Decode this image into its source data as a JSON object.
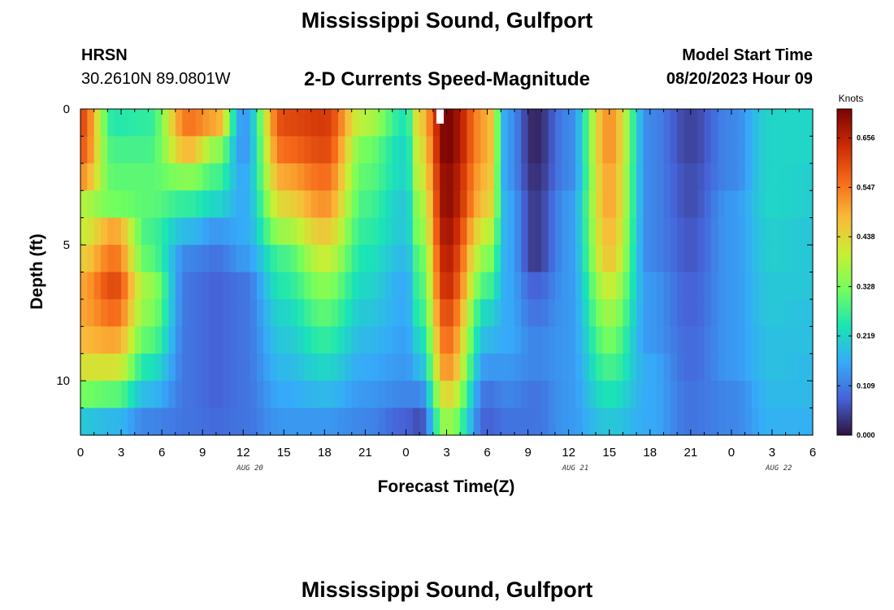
{
  "header": {
    "title": "Mississippi Sound, Gulfport",
    "station_id": "HRSN",
    "coordinates": "30.2610N  89.0801W",
    "subtitle": "2-D Currents Speed-Magnitude",
    "model_start_label": "Model Start Time",
    "model_start_value": "08/20/2023 Hour 09"
  },
  "footer": {
    "title": "Mississippi Sound, Gulfport"
  },
  "chart_data": {
    "type": "heatmap",
    "xlabel": "Forecast Time(Z)",
    "ylabel": "Depth (ft)",
    "x_tick_labels": [
      "0",
      "3",
      "6",
      "9",
      "12",
      "15",
      "18",
      "21",
      "0",
      "3",
      "6",
      "9",
      "12",
      "15",
      "18",
      "21",
      "0",
      "3",
      "6"
    ],
    "date_labels": [
      "AUG 20",
      "AUG 21",
      "AUG 22"
    ],
    "y_tick_labels": [
      "0",
      "5",
      "10"
    ],
    "xlim_hours": [
      0,
      54
    ],
    "ylim_ft": [
      0,
      12
    ],
    "colorbar": {
      "title": "Knots",
      "tick_labels": [
        "0.656",
        "0.547",
        "0.438",
        "0.328",
        "0.219",
        "0.109",
        "0.000"
      ],
      "tick_values": [
        0.656,
        0.547,
        0.438,
        0.328,
        0.219,
        0.109,
        0.0
      ],
      "range": [
        0,
        0.72
      ]
    },
    "time_step_hours": 0.5,
    "depth_levels_ft": [
      0.5,
      1.5,
      2.5,
      3.5,
      4.5,
      5.5,
      6.5,
      7.5,
      8.5,
      9.5,
      10.5,
      11.5
    ],
    "speed_keyframes": [
      {
        "hour": 0,
        "speeds": [
          0.6,
          0.58,
          0.52,
          0.38,
          0.4,
          0.45,
          0.5,
          0.5,
          0.48,
          0.42,
          0.32,
          0.2
        ]
      },
      {
        "hour": 2.5,
        "speeds": [
          0.25,
          0.28,
          0.3,
          0.32,
          0.5,
          0.55,
          0.6,
          0.56,
          0.5,
          0.42,
          0.3,
          0.18
        ]
      },
      {
        "hour": 5,
        "speeds": [
          0.26,
          0.28,
          0.3,
          0.3,
          0.28,
          0.3,
          0.36,
          0.34,
          0.3,
          0.24,
          0.18,
          0.12
        ]
      },
      {
        "hour": 8,
        "speeds": [
          0.55,
          0.48,
          0.34,
          0.26,
          0.18,
          0.12,
          0.1,
          0.1,
          0.1,
          0.1,
          0.1,
          0.1
        ]
      },
      {
        "hour": 10,
        "speeds": [
          0.5,
          0.35,
          0.28,
          0.22,
          0.14,
          0.1,
          0.08,
          0.08,
          0.08,
          0.08,
          0.08,
          0.09
        ]
      },
      {
        "hour": 12,
        "speeds": [
          0.14,
          0.14,
          0.16,
          0.16,
          0.16,
          0.14,
          0.1,
          0.1,
          0.1,
          0.1,
          0.1,
          0.1
        ]
      },
      {
        "hour": 15,
        "speeds": [
          0.6,
          0.56,
          0.5,
          0.44,
          0.36,
          0.28,
          0.25,
          0.22,
          0.2,
          0.18,
          0.16,
          0.14
        ]
      },
      {
        "hour": 18,
        "speeds": [
          0.62,
          0.6,
          0.56,
          0.52,
          0.46,
          0.4,
          0.34,
          0.3,
          0.26,
          0.22,
          0.18,
          0.14
        ]
      },
      {
        "hour": 21,
        "speeds": [
          0.38,
          0.32,
          0.3,
          0.28,
          0.26,
          0.24,
          0.22,
          0.2,
          0.18,
          0.16,
          0.14,
          0.12
        ]
      },
      {
        "hour": 24,
        "speeds": [
          0.24,
          0.22,
          0.22,
          0.2,
          0.2,
          0.18,
          0.16,
          0.16,
          0.15,
          0.14,
          0.12,
          0.08
        ]
      },
      {
        "hour": 25,
        "speeds": [
          0.45,
          0.42,
          0.4,
          0.36,
          0.34,
          0.3,
          0.28,
          0.26,
          0.22,
          0.18,
          0.12,
          0.06
        ]
      },
      {
        "hour": 27,
        "speeds": [
          0.72,
          0.72,
          0.7,
          0.7,
          0.68,
          0.66,
          0.64,
          0.6,
          0.56,
          0.52,
          0.44,
          0.36
        ]
      },
      {
        "hour": 30,
        "speeds": [
          0.5,
          0.5,
          0.48,
          0.46,
          0.4,
          0.34,
          0.28,
          0.22,
          0.18,
          0.14,
          0.1,
          0.08
        ]
      },
      {
        "hour": 31.5,
        "speeds": [
          0.14,
          0.14,
          0.14,
          0.16,
          0.16,
          0.16,
          0.16,
          0.16,
          0.16,
          0.14,
          0.12,
          0.1
        ]
      },
      {
        "hour": 33.5,
        "speeds": [
          0.02,
          0.02,
          0.03,
          0.04,
          0.04,
          0.04,
          0.08,
          0.1,
          0.12,
          0.12,
          0.1,
          0.1
        ]
      },
      {
        "hour": 36,
        "speeds": [
          0.12,
          0.12,
          0.12,
          0.14,
          0.14,
          0.14,
          0.14,
          0.14,
          0.14,
          0.14,
          0.14,
          0.14
        ]
      },
      {
        "hour": 39,
        "speeds": [
          0.52,
          0.52,
          0.5,
          0.5,
          0.48,
          0.46,
          0.4,
          0.36,
          0.32,
          0.28,
          0.24,
          0.2
        ]
      },
      {
        "hour": 42,
        "speeds": [
          0.12,
          0.12,
          0.12,
          0.12,
          0.12,
          0.12,
          0.14,
          0.14,
          0.14,
          0.16,
          0.16,
          0.16
        ]
      },
      {
        "hour": 45,
        "speeds": [
          0.05,
          0.05,
          0.06,
          0.06,
          0.07,
          0.07,
          0.08,
          0.08,
          0.09,
          0.09,
          0.1,
          0.1
        ]
      },
      {
        "hour": 48,
        "speeds": [
          0.12,
          0.12,
          0.12,
          0.14,
          0.14,
          0.14,
          0.14,
          0.14,
          0.14,
          0.14,
          0.12,
          0.12
        ]
      },
      {
        "hour": 51,
        "speeds": [
          0.22,
          0.22,
          0.22,
          0.22,
          0.21,
          0.21,
          0.2,
          0.2,
          0.19,
          0.19,
          0.18,
          0.17
        ]
      },
      {
        "hour": 54,
        "speeds": [
          0.22,
          0.22,
          0.21,
          0.21,
          0.2,
          0.2,
          0.2,
          0.19,
          0.19,
          0.18,
          0.18,
          0.17
        ]
      }
    ],
    "grid": false,
    "legend": "colorbar-right"
  },
  "colormap": [
    "#30123b",
    "#4662d7",
    "#36aaf9",
    "#1ae4b6",
    "#72fe5e",
    "#c8ef34",
    "#faba39",
    "#f66b19",
    "#ca2a04",
    "#7a0403"
  ]
}
